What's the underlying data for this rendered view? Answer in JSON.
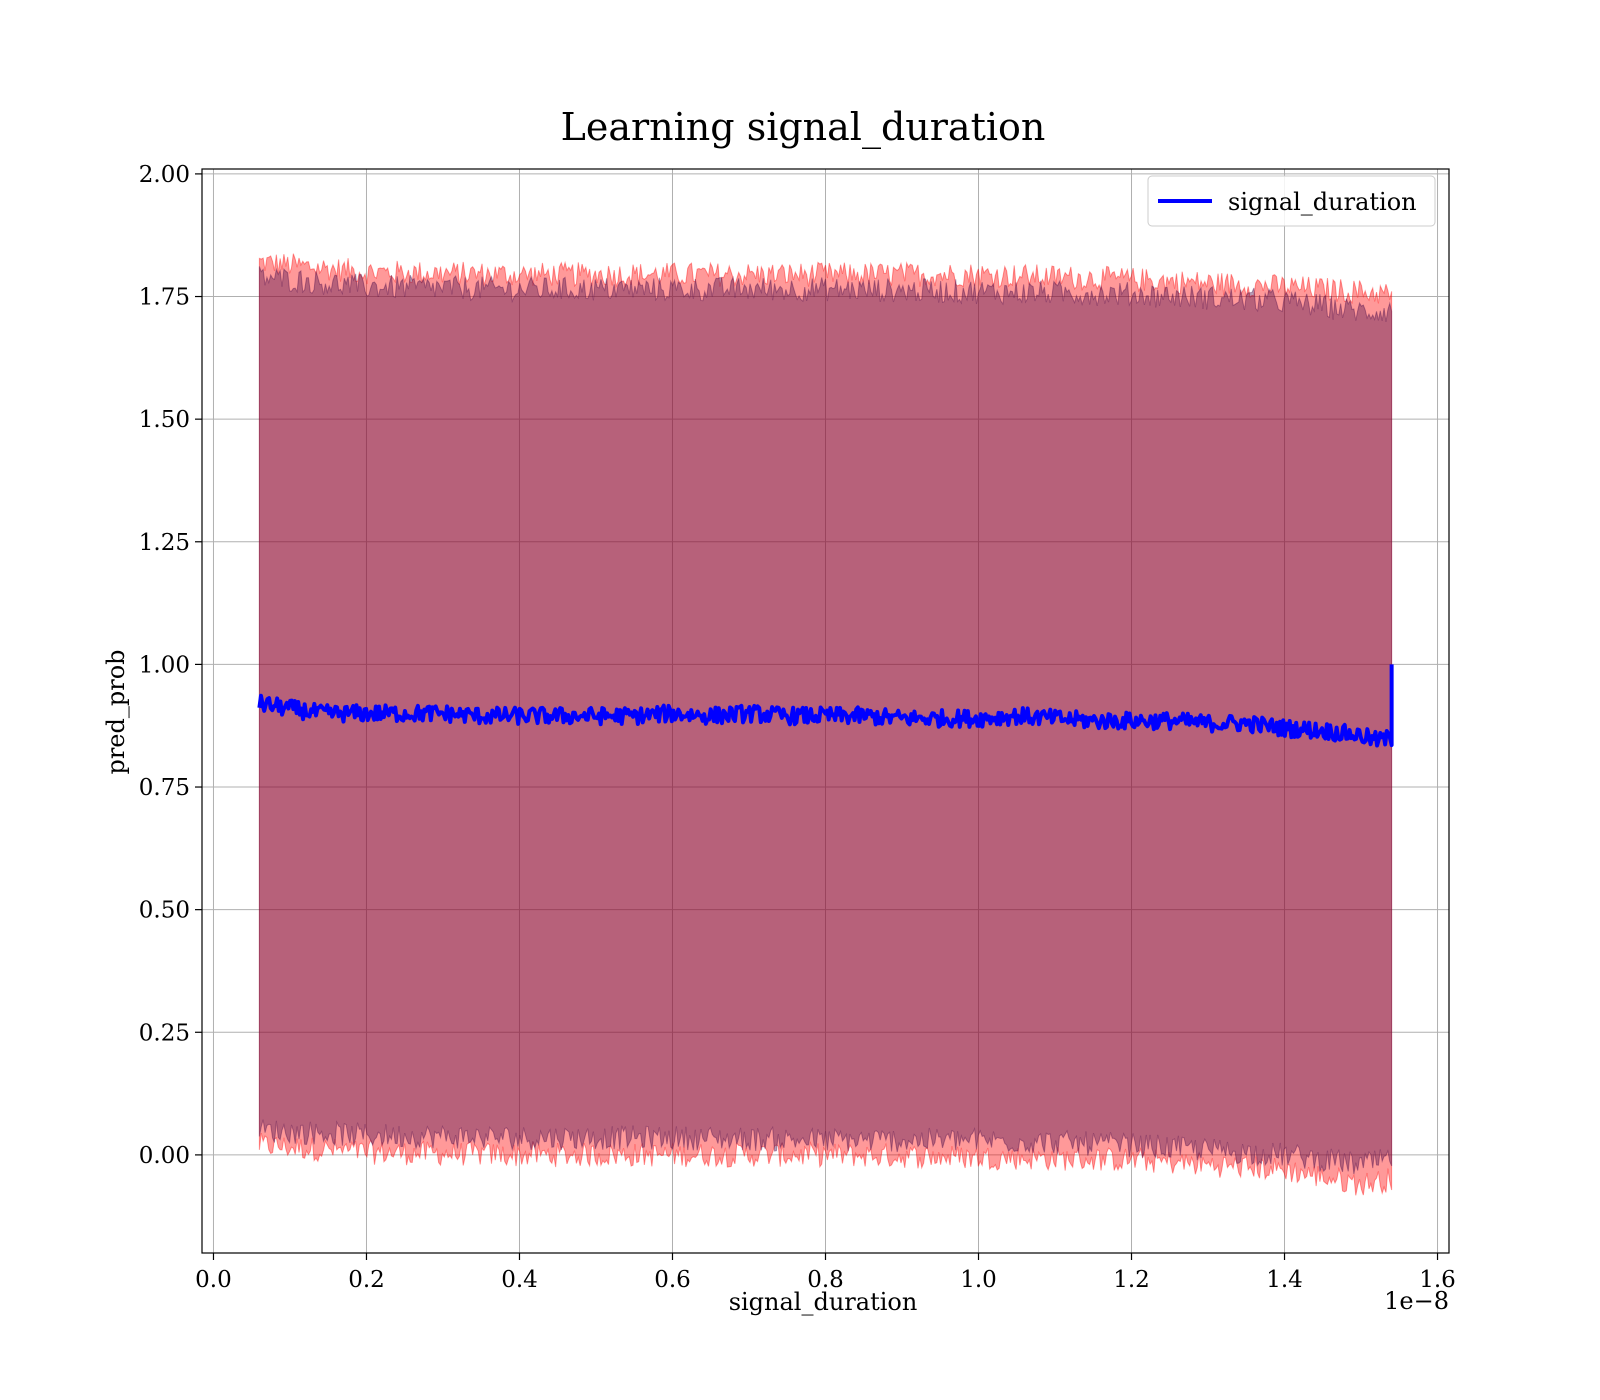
{
  "chart_data": {
    "type": "line",
    "title": "Learning signal_duration",
    "xlabel": "signal_duration",
    "ylabel": "pred_prob",
    "x_offset_label": "1e−8",
    "xlim": [
      -0.015,
      1.615
    ],
    "ylim": [
      -0.2,
      2.01
    ],
    "grid": true,
    "legend_position": "top-right",
    "x_ticks": [
      {
        "value": 0.0,
        "label": "0.0"
      },
      {
        "value": 0.2,
        "label": "0.2"
      },
      {
        "value": 0.4,
        "label": "0.4"
      },
      {
        "value": 0.6,
        "label": "0.6"
      },
      {
        "value": 0.8,
        "label": "0.8"
      },
      {
        "value": 1.0,
        "label": "1.0"
      },
      {
        "value": 1.2,
        "label": "1.2"
      },
      {
        "value": 1.4,
        "label": "1.4"
      },
      {
        "value": 1.6,
        "label": "1.6"
      }
    ],
    "y_ticks": [
      {
        "value": 0.0,
        "label": "0.00"
      },
      {
        "value": 0.25,
        "label": "0.25"
      },
      {
        "value": 0.5,
        "label": "0.50"
      },
      {
        "value": 0.75,
        "label": "0.75"
      },
      {
        "value": 1.0,
        "label": "1.00"
      },
      {
        "value": 1.25,
        "label": "1.25"
      },
      {
        "value": 1.5,
        "label": "1.50"
      },
      {
        "value": 1.75,
        "label": "1.75"
      },
      {
        "value": 2.0,
        "label": "2.00"
      }
    ],
    "series": [
      {
        "name": "signal_duration",
        "color": "#0000ff",
        "x": [
          0.06,
          0.08,
          0.1,
          0.12,
          0.14,
          0.16,
          0.18,
          0.2,
          0.25,
          0.3,
          0.35,
          0.4,
          0.45,
          0.5,
          0.55,
          0.6,
          0.65,
          0.7,
          0.75,
          0.8,
          0.85,
          0.9,
          0.95,
          1.0,
          1.05,
          1.1,
          1.15,
          1.2,
          1.25,
          1.3,
          1.35,
          1.4,
          1.45,
          1.5,
          1.52,
          1.54
        ],
        "values": [
          0.92,
          0.915,
          0.91,
          0.905,
          0.9,
          0.9,
          0.9,
          0.9,
          0.9,
          0.9,
          0.895,
          0.895,
          0.895,
          0.895,
          0.895,
          0.9,
          0.895,
          0.9,
          0.895,
          0.895,
          0.895,
          0.89,
          0.89,
          0.89,
          0.895,
          0.89,
          0.885,
          0.885,
          0.885,
          0.88,
          0.88,
          0.87,
          0.865,
          0.855,
          0.845,
          0.85
        ]
      }
    ],
    "bands": [
      {
        "color": "#ff0000",
        "opacity": 0.4,
        "x": [
          0.06,
          0.2,
          0.4,
          0.6,
          0.8,
          1.0,
          1.2,
          1.4,
          1.5,
          1.54
        ],
        "lower": [
          0.02,
          0.005,
          0.0,
          0.0,
          0.0,
          -0.005,
          -0.01,
          -0.03,
          -0.06,
          -0.05
        ],
        "upper": [
          1.82,
          1.8,
          1.795,
          1.795,
          1.795,
          1.795,
          1.785,
          1.77,
          1.76,
          1.755
        ]
      },
      {
        "color": "#4b0d4b",
        "opacity": 0.4,
        "x": [
          0.06,
          0.2,
          0.4,
          0.6,
          0.8,
          1.0,
          1.2,
          1.4,
          1.5,
          1.54
        ],
        "lower": [
          0.05,
          0.04,
          0.035,
          0.035,
          0.03,
          0.03,
          0.02,
          0.0,
          -0.02,
          -0.01
        ],
        "upper": [
          1.79,
          1.77,
          1.765,
          1.765,
          1.765,
          1.76,
          1.755,
          1.74,
          1.72,
          1.72
        ]
      }
    ]
  }
}
